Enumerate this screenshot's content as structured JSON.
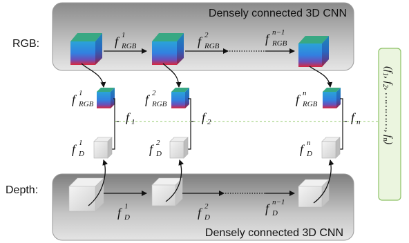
{
  "panels": {
    "rgb_title": "Densely connected 3D CNN",
    "depth_title": "Densely connected 3D CNN"
  },
  "row_labels": {
    "rgb": "RGB:",
    "depth": "Depth:"
  },
  "rgb_stream": {
    "features": [
      {
        "base": "f",
        "sup": "1",
        "sub": "RGB"
      },
      {
        "base": "f",
        "sup": "2",
        "sub": "RGB"
      },
      {
        "base": "f",
        "sup": "n−1",
        "sub": "RGB"
      }
    ],
    "outputs": [
      {
        "base": "f",
        "sup": "1",
        "sub": "RGB"
      },
      {
        "base": "f",
        "sup": "2",
        "sub": "RGB"
      },
      {
        "base": "f",
        "sup": "n",
        "sub": "RGB"
      }
    ]
  },
  "depth_stream": {
    "features": [
      {
        "base": "f",
        "sup": "1",
        "sub": "D"
      },
      {
        "base": "f",
        "sup": "2",
        "sub": "D"
      },
      {
        "base": "f",
        "sup": "n−1",
        "sub": "D"
      }
    ],
    "outputs": [
      {
        "base": "f",
        "sup": "1",
        "sub": "D"
      },
      {
        "base": "f",
        "sup": "2",
        "sub": "D"
      },
      {
        "base": "f",
        "sup": "n",
        "sub": "D"
      }
    ]
  },
  "fused": [
    {
      "base": "f",
      "sub": "1"
    },
    {
      "base": "f",
      "sub": "2"
    },
    {
      "base": "f",
      "sub": "n"
    }
  ],
  "output_box": {
    "open": "(f",
    "sub1": "1",
    "sep1": ", f",
    "sub2": "2",
    "dots": ", …………, f",
    "subn": "n",
    "close": ")"
  },
  "colors": {
    "panel_fill_top": "#8a8a8a",
    "panel_fill_mid": "#d6d6d6",
    "output_box_fill": "#ebf5df",
    "output_box_border": "#8cc165",
    "dashed_line": "#92c86a",
    "cube_top": "#38a883",
    "cube_front": "#2f8fe0",
    "cube_bottom": "#d62b44",
    "gray_cube": "#dcdcdc"
  }
}
